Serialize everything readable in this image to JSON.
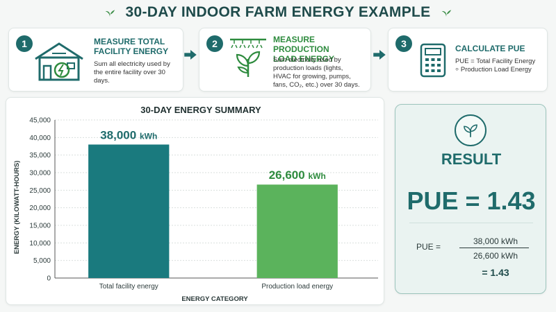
{
  "header": {
    "title": "30-DAY INDOOR FARM ENERGY EXAMPLE",
    "left_icon": "leaf-icon",
    "right_icon": "leaf-icon"
  },
  "steps": [
    {
      "number": "1",
      "title_line1": "MEASURE TOTAL",
      "title_line2": "FACILITY ENERGY",
      "desc_line1": "Sum all electricity used by",
      "desc_line2": "the entire facility over 30 days.",
      "icon": "building-energy-icon"
    },
    {
      "number": "2",
      "title_line1": "MEASURE PRODUCTION",
      "title_line2": "LOAD ENERGY",
      "desc_line1": "Sum electricity used by",
      "desc_line2": "production loads (lights,",
      "desc_line3": "HVAC for growing, pumps,",
      "desc_line4": "fans, CO₂, etc.) over 30 days.",
      "icon": "plant-lights-icon"
    },
    {
      "number": "3",
      "title_line1": "CALCULATE PUE",
      "desc_line1": "PUE = Total Facility Energy",
      "desc_line2": "÷ Production Load Energy",
      "icon": "calculator-icon"
    }
  ],
  "colors": {
    "teal": "#1a7a7e",
    "green": "#5bb35c",
    "dark_teal": "#1f6b6b"
  },
  "chart_data": {
    "type": "bar",
    "title": "30-DAY ENERGY SUMMARY",
    "xlabel": "ENERGY CATEGORY",
    "ylabel": "ENERGY (KILOWATT-HOURS)",
    "categories": [
      "Total facility energy",
      "Production load energy"
    ],
    "values": [
      38000,
      26600
    ],
    "value_labels": [
      "38,000",
      "26,600"
    ],
    "value_unit": "kWh",
    "bar_colors": [
      "#1a7a7e",
      "#5bb35c"
    ],
    "label_colors": [
      "#1f6b6b",
      "#2e8b3e"
    ],
    "ylim": [
      0,
      45000
    ],
    "yticks": [
      0,
      5000,
      10000,
      15000,
      20000,
      25000,
      30000,
      35000,
      40000,
      45000
    ],
    "ytick_labels": [
      "0",
      "5,000",
      "10,000",
      "15,000",
      "20,000",
      "25,000",
      "30,000",
      "35,000",
      "40,000",
      "45,000"
    ],
    "grid": true
  },
  "result": {
    "icon": "sprout-icon",
    "title": "RESULT",
    "pue_text": "PUE = 1.43",
    "formula_label": "PUE  =",
    "numerator": "38,000 kWh",
    "denominator": "26,600 kWh",
    "answer": "= 1.43"
  }
}
